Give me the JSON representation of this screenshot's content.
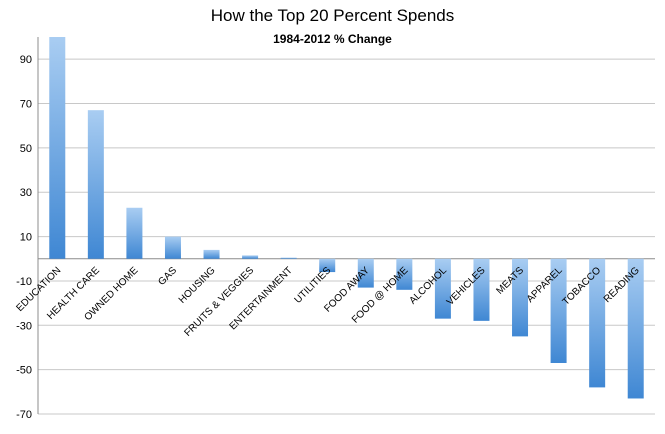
{
  "chart_data": {
    "type": "bar",
    "title": "How the Top 20 Percent Spends",
    "subtitle": "1984-2012 % Change",
    "xlabel": "",
    "ylabel": "",
    "ylim": [
      -70,
      100
    ],
    "yticks": [
      90,
      70,
      50,
      30,
      10,
      -10,
      -30,
      -50,
      -70
    ],
    "grid": true,
    "categories": [
      "EDUCATION",
      "HEALTH CARE",
      "OWNED HOME",
      "GAS",
      "HOUSING",
      "FRUITS & VEGGIES",
      "ENTERTAINMENT",
      "UTILITIES",
      "FOOD AWAY",
      "FOOD @ HOME",
      "ALCOHOL",
      "VEHICLES",
      "MEATS",
      "APPAREL",
      "TOBACCO",
      "READING"
    ],
    "values": [
      100,
      67,
      23,
      10,
      4,
      1.5,
      0.5,
      -6,
      -13,
      -14,
      -27,
      -28,
      -35,
      -47,
      -58,
      -63
    ],
    "colors": {
      "bar_top": "#a9cdf2",
      "bar_bottom": "#3f87d3",
      "grid": "#c8c8c8",
      "axis": "#8c8c8c"
    }
  }
}
